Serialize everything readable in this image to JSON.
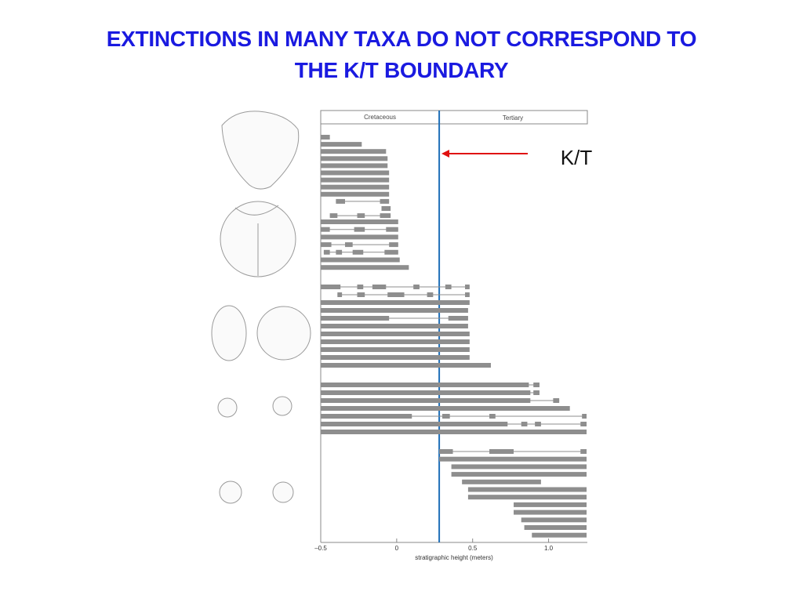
{
  "title": [
    "EXTINCTIONS IN MANY TAXA DO NOT CORRESPOND TO",
    "THE K/T BOUNDARY"
  ],
  "chart_data": {
    "type": "range",
    "xlim": [
      -0.5,
      1.25
    ],
    "xticks": [
      {
        "value": -0.5,
        "label": "–0.5"
      },
      0,
      0.5,
      {
        "value": 1,
        "label": "1.0"
      }
    ],
    "xlabel": "stratigraphic height (meters)",
    "periods": [
      "Cretaceous",
      "Tertiary"
    ],
    "boundary": 0.28,
    "boundary_label": "K/T",
    "color": "#8e8e8e",
    "boundary_color": "#1f6fb8",
    "groups": [
      [
        [
          [
            -0.5,
            -0.44
          ]
        ],
        [
          [
            -0.5,
            -0.23
          ]
        ],
        [
          [
            -0.5,
            -0.07
          ]
        ],
        [
          [
            -0.5,
            -0.06
          ]
        ],
        [
          [
            -0.5,
            -0.06
          ]
        ],
        [
          [
            -0.5,
            -0.05
          ]
        ],
        [
          [
            -0.5,
            -0.05
          ]
        ],
        [
          [
            -0.5,
            -0.05
          ]
        ],
        [
          [
            -0.5,
            -0.05
          ]
        ],
        [
          [
            -0.4,
            -0.34
          ],
          [
            -0.11,
            -0.05
          ]
        ],
        [
          [
            -0.1,
            -0.04
          ]
        ],
        [
          [
            -0.44,
            -0.39
          ],
          [
            -0.26,
            -0.21
          ],
          [
            -0.11,
            -0.04
          ]
        ]
      ],
      [
        [
          [
            -0.5,
            0.01
          ]
        ],
        [
          [
            -0.5,
            -0.44
          ],
          [
            -0.28,
            -0.21
          ],
          [
            -0.07,
            0.01
          ]
        ],
        [
          [
            -0.5,
            0.01
          ]
        ],
        [
          [
            -0.5,
            -0.43
          ],
          [
            -0.34,
            -0.29
          ],
          [
            -0.05,
            0.01
          ]
        ],
        [
          [
            -0.48,
            -0.44
          ],
          [
            -0.4,
            -0.36
          ],
          [
            -0.29,
            -0.22
          ],
          [
            -0.08,
            0.01
          ]
        ],
        [
          [
            -0.5,
            0.02
          ]
        ],
        [
          [
            -0.5,
            0.08
          ]
        ]
      ],
      [
        [
          [
            -0.5,
            -0.37
          ],
          [
            -0.26,
            -0.22
          ],
          [
            -0.16,
            -0.07
          ],
          [
            0.11,
            0.15
          ],
          [
            0.32,
            0.36
          ],
          [
            0.45,
            0.48
          ]
        ],
        [
          [
            -0.39,
            -0.36
          ],
          [
            -0.26,
            -0.21
          ],
          [
            -0.06,
            0.05
          ],
          [
            0.2,
            0.24
          ],
          [
            0.45,
            0.48
          ]
        ],
        [
          [
            -0.5,
            0.48
          ]
        ],
        [
          [
            -0.5,
            0.47
          ]
        ],
        [
          [
            -0.5,
            -0.05
          ],
          [
            0.34,
            0.47
          ]
        ],
        [
          [
            -0.5,
            0.47
          ]
        ],
        [
          [
            -0.5,
            0.48
          ]
        ],
        [
          [
            -0.5,
            0.48
          ]
        ],
        [
          [
            -0.5,
            0.48
          ]
        ],
        [
          [
            -0.5,
            0.48
          ]
        ],
        [
          [
            -0.5,
            0.62
          ]
        ]
      ],
      [
        [
          [
            -0.5,
            0.87
          ],
          [
            0.9,
            0.94
          ]
        ],
        [
          [
            -0.5,
            0.88
          ],
          [
            0.9,
            0.94
          ]
        ],
        [
          [
            -0.5,
            0.88
          ],
          [
            1.03,
            1.07
          ]
        ],
        [
          [
            -0.5,
            1.14
          ]
        ],
        [
          [
            -0.5,
            0.1
          ],
          [
            0.3,
            0.35
          ],
          [
            0.61,
            0.65
          ],
          [
            1.22,
            1.25
          ]
        ],
        [
          [
            -0.5,
            0.73
          ],
          [
            0.82,
            0.86
          ],
          [
            0.91,
            0.95
          ],
          [
            1.21,
            1.25
          ]
        ],
        [
          [
            -0.5,
            1.25
          ]
        ]
      ],
      [
        [
          [
            0.28,
            0.37
          ],
          [
            0.61,
            0.77
          ],
          [
            1.21,
            1.25
          ]
        ],
        [
          [
            0.28,
            1.25
          ]
        ],
        [
          [
            0.36,
            1.25
          ]
        ],
        [
          [
            0.36,
            1.25
          ]
        ],
        [
          [
            0.43,
            0.95
          ]
        ],
        [
          [
            0.47,
            1.25
          ]
        ],
        [
          [
            0.47,
            1.25
          ]
        ],
        [
          [
            0.77,
            1.25
          ]
        ],
        [
          [
            0.77,
            1.25
          ]
        ],
        [
          [
            0.82,
            1.25
          ]
        ],
        [
          [
            0.84,
            1.25
          ]
        ],
        [
          [
            0.89,
            1.25
          ]
        ]
      ]
    ]
  }
}
